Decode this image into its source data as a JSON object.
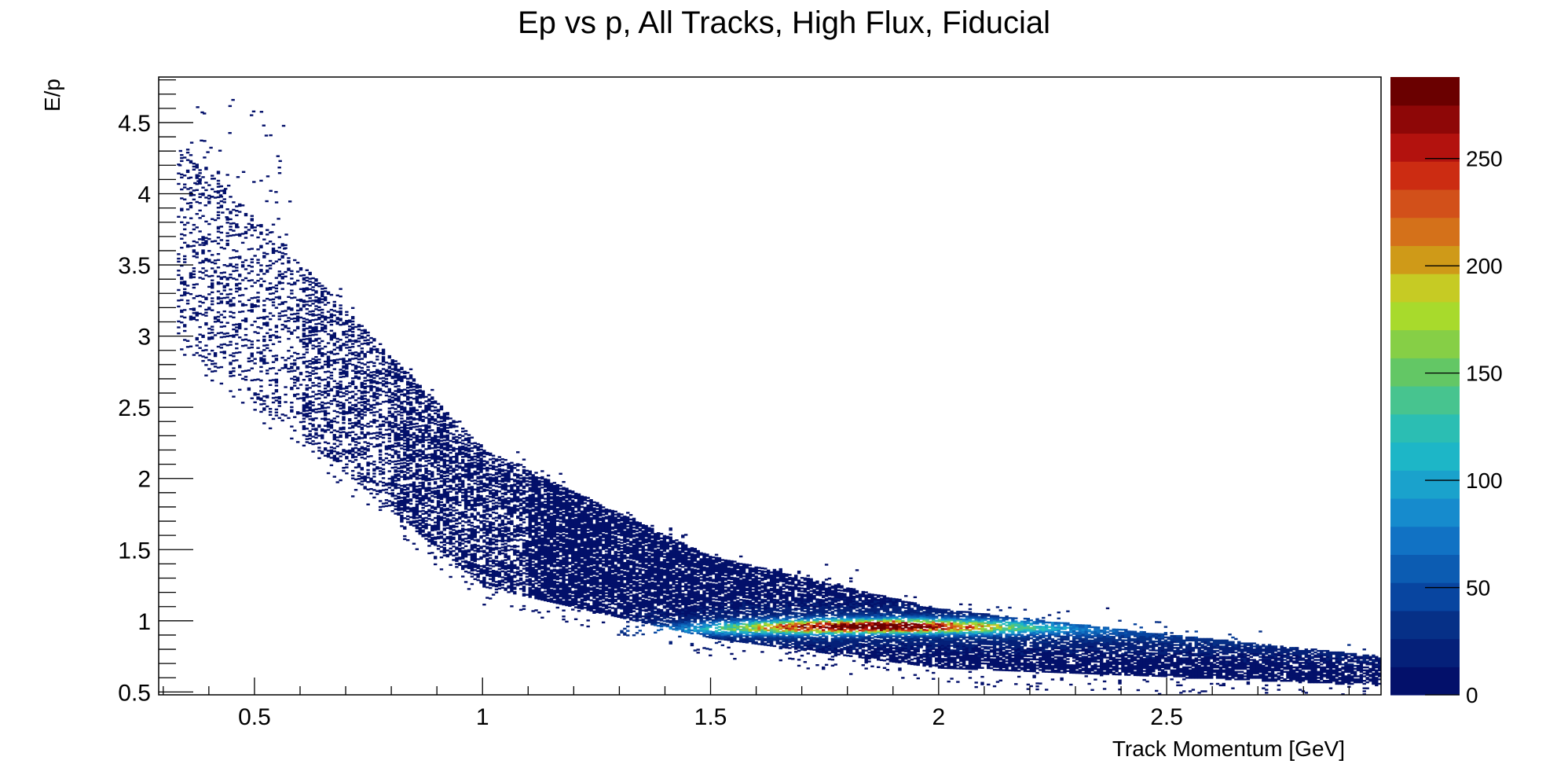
{
  "chart_data": {
    "type": "heatmap",
    "title": "Ep vs p, All Tracks, High Flux, Fiducial",
    "xlabel": "Track Momentum [GeV]",
    "ylabel": "E/p",
    "xlim": [
      0.29,
      2.97
    ],
    "ylim": [
      0.48,
      4.82
    ],
    "x_ticks": [
      0.5,
      1,
      1.5,
      2,
      2.5
    ],
    "x_tick_labels": [
      "0.5",
      "1",
      "1.5",
      "2",
      "2.5"
    ],
    "y_ticks": [
      0.5,
      1,
      1.5,
      2,
      2.5,
      3,
      3.5,
      4,
      4.5
    ],
    "y_tick_labels": [
      "0.5",
      "1",
      "1.5",
      "2",
      "2.5",
      "3",
      "3.5",
      "4",
      "4.5"
    ],
    "colorbar": {
      "min": 0,
      "max": 288,
      "ticks": [
        0,
        50,
        100,
        150,
        200,
        250
      ],
      "tick_labels": [
        "0",
        "50",
        "100",
        "150",
        "200",
        "250"
      ],
      "palette": [
        "#03106a",
        "#052079",
        "#063087",
        "#0845a0",
        "#0c5cb2",
        "#1172c4",
        "#168bcd",
        "#1aa2cc",
        "#1db6c7",
        "#2bbeb3",
        "#47c48f",
        "#63c765",
        "#86cf46",
        "#a8da2c",
        "#c6cb24",
        "#cf9a18",
        "#d4711a",
        "#d2501a",
        "#cc2c12",
        "#b3120e",
        "#8e0707",
        "#6a0000"
      ]
    },
    "grid": false,
    "legend": "none",
    "description_series": [
      {
        "name": "lower-band",
        "points_x": [
          0.5,
          1.0,
          1.5,
          2.0,
          2.5,
          2.9
        ],
        "points_y": [
          2.55,
          1.23,
          0.87,
          0.66,
          0.6,
          0.55
        ]
      },
      {
        "name": "upper-band",
        "points_x": [
          0.6,
          1.0,
          1.5,
          2.0,
          2.5,
          2.9
        ],
        "points_y": [
          3.5,
          2.2,
          1.45,
          1.08,
          0.9,
          0.77
        ]
      },
      {
        "name": "peak-ridge",
        "points_x": [
          1.3,
          1.6,
          1.9,
          2.2,
          2.4
        ],
        "points_y": [
          0.93,
          0.95,
          0.96,
          0.95,
          0.93
        ]
      }
    ]
  }
}
